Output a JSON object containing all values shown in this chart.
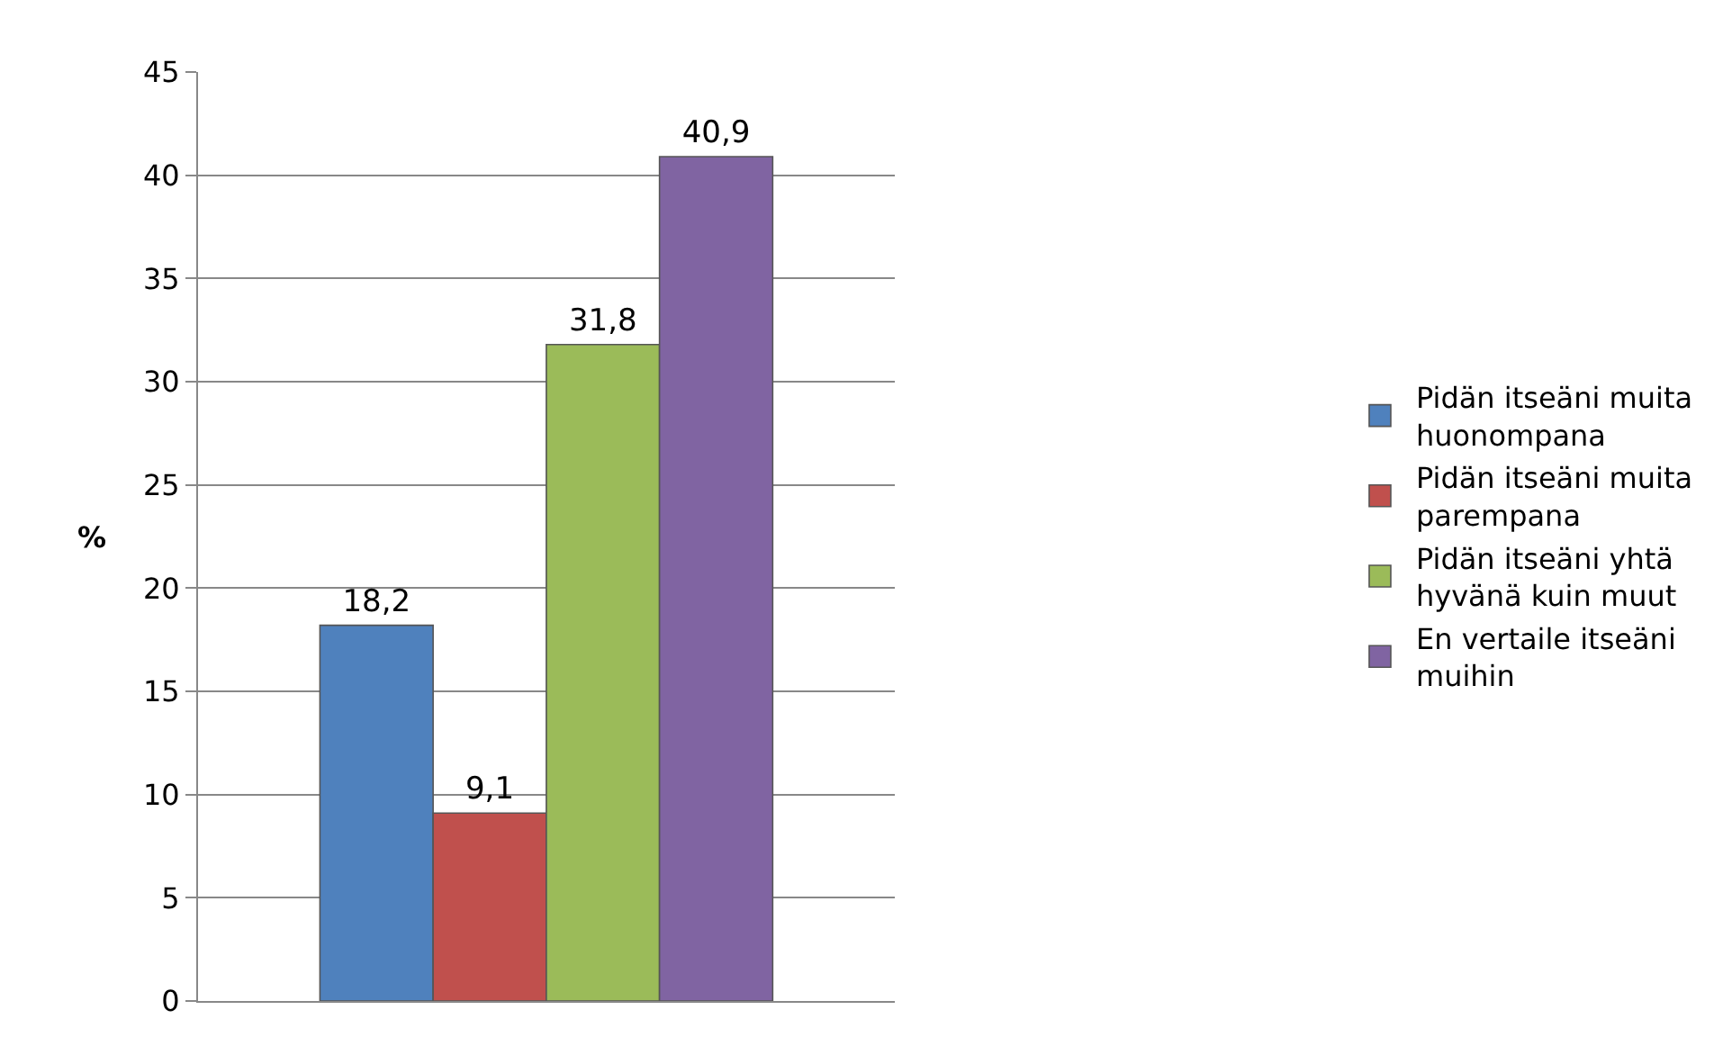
{
  "chart_data": {
    "type": "bar",
    "ylabel": "%",
    "categories": [
      null
    ],
    "series": [
      {
        "name": "Pidän itseäni muita huonompana",
        "color": "#4f81bd",
        "values": [
          18.2
        ],
        "value_labels": [
          "18,2"
        ]
      },
      {
        "name": "Pidän itseäni muita parempana",
        "color": "#c0504d",
        "values": [
          9.1
        ],
        "value_labels": [
          "9,1"
        ]
      },
      {
        "name": "Pidän itseäni yhtä hyvänä kuin muut",
        "color": "#9bbb59",
        "values": [
          31.8
        ],
        "value_labels": [
          "31,8"
        ]
      },
      {
        "name": "En vertaile itseäni muihin",
        "color": "#8064a2",
        "values": [
          40.9
        ],
        "value_labels": [
          "40,9"
        ]
      }
    ],
    "ylim": [
      0,
      45
    ],
    "yticks": [
      0,
      5,
      10,
      15,
      20,
      25,
      30,
      35,
      40,
      45
    ],
    "grid": "y",
    "legend": "right"
  }
}
